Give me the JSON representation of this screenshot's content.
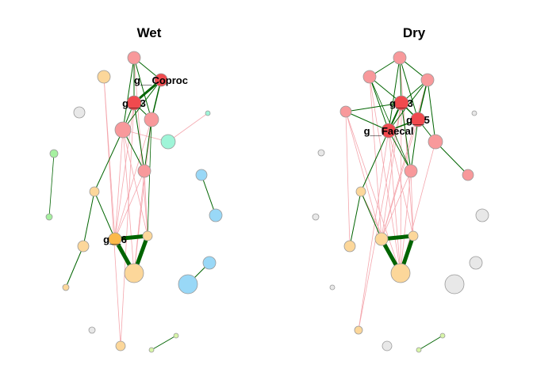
{
  "colors": {
    "edge_positive": "#006400",
    "edge_negative": "#f4a6ad",
    "red": "#f8999b",
    "red_dark": "#f04a4e",
    "orange": "#fcd79a",
    "orange_dark": "#fbb94a",
    "blue": "#99d8f7",
    "green": "#a6f0a0",
    "mint": "#9ff5d8",
    "lime": "#d7f5a8",
    "grey": "#e8e8e8"
  },
  "panels": [
    {
      "title": "Wet",
      "labels": [
        {
          "node": 1,
          "text": "g__Coproc"
        },
        {
          "node": 2,
          "text": "g__3"
        },
        {
          "node": 12,
          "text": "g__6"
        }
      ]
    },
    {
      "title": "Dry",
      "labels": [
        {
          "node": 3,
          "text": "g__3"
        },
        {
          "node": 4,
          "text": "g__5"
        },
        {
          "node": 5,
          "text": "g__Faecal"
        }
      ]
    }
  ]
}
